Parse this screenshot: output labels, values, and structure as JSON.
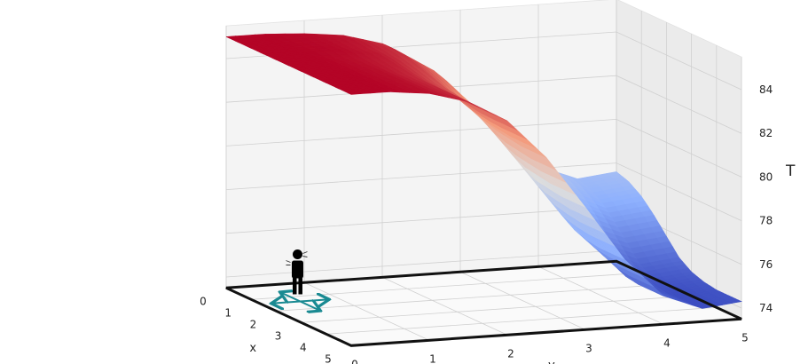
{
  "chart_data": {
    "type": "surface",
    "title": "",
    "xlabel": "x",
    "ylabel": "y",
    "zlabel": "T",
    "xlim": [
      0,
      5
    ],
    "ylim": [
      0,
      5
    ],
    "zlim": [
      73.5,
      85.5
    ],
    "x_ticks": [
      "0",
      "1",
      "2",
      "3",
      "4",
      "5"
    ],
    "y_ticks": [
      "0",
      "1",
      "2",
      "3",
      "4",
      "5"
    ],
    "z_ticks": [
      "74",
      "76",
      "78",
      "80",
      "82",
      "84"
    ],
    "grid": true,
    "colormap": "coolwarm",
    "surface": {
      "x": [
        0,
        0.5,
        1,
        1.5,
        2,
        2.5,
        3,
        3.5,
        4,
        4.5,
        5
      ],
      "y": [
        0,
        0.5,
        1,
        1.5,
        2,
        2.5,
        3,
        3.5,
        4,
        4.5,
        5
      ],
      "T": [
        [
          85.0,
          85.0,
          84.9,
          84.7,
          84.2,
          83.1,
          81.4,
          79.6,
          78.1,
          77.4,
          77.6
        ],
        [
          85.0,
          85.0,
          84.9,
          84.7,
          84.2,
          83.1,
          81.4,
          79.5,
          78.0,
          77.2,
          77.4
        ],
        [
          85.0,
          85.0,
          84.9,
          84.6,
          84.1,
          82.9,
          81.1,
          79.2,
          77.6,
          76.8,
          77.0
        ],
        [
          85.0,
          85.0,
          84.9,
          84.6,
          83.9,
          82.6,
          80.7,
          78.6,
          77.0,
          76.2,
          76.4
        ],
        [
          85.0,
          85.0,
          84.8,
          84.5,
          83.7,
          82.2,
          80.1,
          77.9,
          76.2,
          75.5,
          75.7
        ],
        [
          85.0,
          85.0,
          84.8,
          84.4,
          83.5,
          81.9,
          79.6,
          77.3,
          75.6,
          74.8,
          75.0
        ],
        [
          85.0,
          85.0,
          84.8,
          84.3,
          83.4,
          81.7,
          79.3,
          76.9,
          75.2,
          74.4,
          74.6
        ],
        [
          85.0,
          85.0,
          84.8,
          84.3,
          83.3,
          81.6,
          79.2,
          76.7,
          74.9,
          74.2,
          74.4
        ],
        [
          85.0,
          85.0,
          84.8,
          84.3,
          83.3,
          81.5,
          79.1,
          76.6,
          74.8,
          74.1,
          74.3
        ],
        [
          85.0,
          85.0,
          84.8,
          84.3,
          83.3,
          81.5,
          79.1,
          76.6,
          74.8,
          74.1,
          74.3
        ],
        [
          85.0,
          85.0,
          84.8,
          84.3,
          83.3,
          81.5,
          79.1,
          76.6,
          74.8,
          74.1,
          74.3
        ]
      ]
    },
    "domain_outline": {
      "x": [
        0,
        5
      ],
      "y": [
        0,
        5
      ],
      "color": "#111111"
    },
    "agent": {
      "icon": "person-icon",
      "x": 1.4,
      "y": 0.5,
      "arrow_color": "#1a8a92",
      "arrows": [
        "+x",
        "-x",
        "+y",
        "-y"
      ]
    }
  }
}
